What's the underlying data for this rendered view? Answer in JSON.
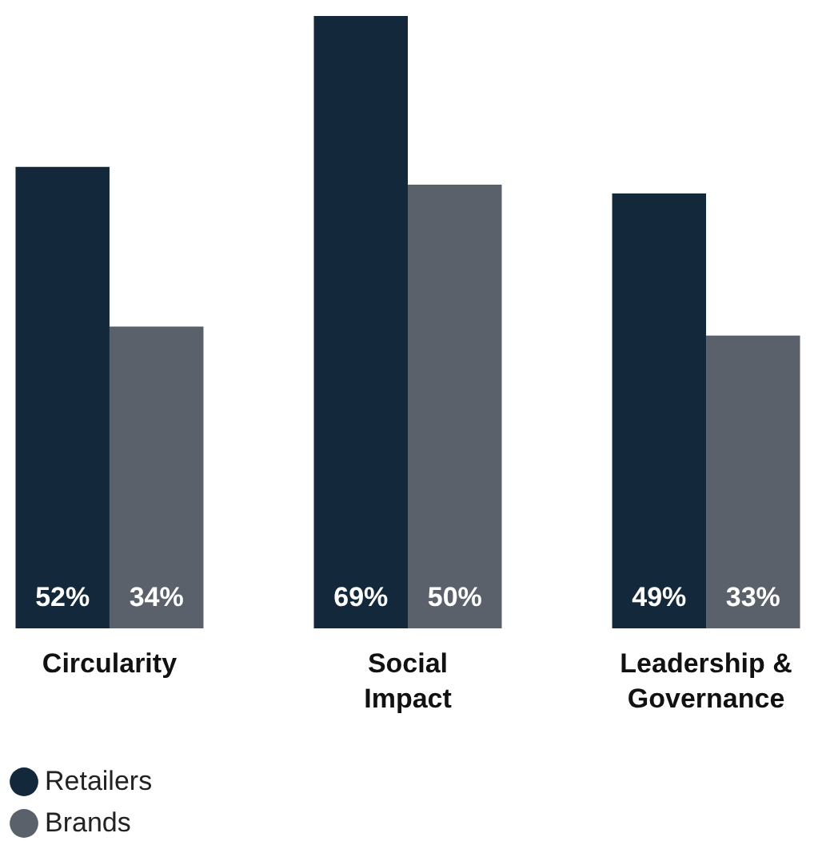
{
  "chart_data": {
    "type": "bar",
    "categories": [
      "Circularity",
      "Social Impact",
      "Leadership & Governance"
    ],
    "series": [
      {
        "name": "Retailers",
        "color": "#13293b",
        "values": [
          52,
          69,
          49
        ],
        "value_labels": [
          "52%",
          "69%",
          "49%"
        ]
      },
      {
        "name": "Brands",
        "color": "#5b616b",
        "values": [
          34,
          50,
          33
        ],
        "value_labels": [
          "34%",
          "50%",
          "33%"
        ]
      }
    ],
    "legend": "bottom left",
    "grid": false
  }
}
